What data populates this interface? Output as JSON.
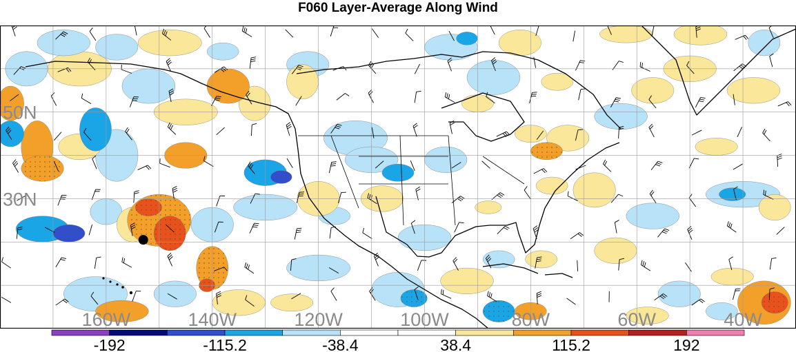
{
  "title": "F060 Layer-Average Along Wind",
  "map": {
    "projection": "cylindrical",
    "lon_range": [
      -180,
      -30
    ],
    "lat_range": [
      0,
      70
    ],
    "background": "#ffffff",
    "coast_color": "#000000",
    "grid_color": "#9a9a9a",
    "lat_labels": [
      {
        "lat": 50,
        "text": "50N"
      },
      {
        "lat": 30,
        "text": "30N"
      }
    ],
    "lon_labels": [
      {
        "lon": -160,
        "text": "160W"
      },
      {
        "lon": -140,
        "text": "140W"
      },
      {
        "lon": -120,
        "text": "120W"
      },
      {
        "lon": -100,
        "text": "100W"
      },
      {
        "lon": -80,
        "text": "80W"
      },
      {
        "lon": -60,
        "text": "60W"
      },
      {
        "lon": -40,
        "text": "40W"
      }
    ],
    "label_color": "#8a8a8a",
    "marker": {
      "lon": -153,
      "lat": 20.5,
      "color": "#000000"
    }
  },
  "colorbar": {
    "levels": [
      -192,
      -153.6,
      -115.2,
      -76.8,
      -38.4,
      0,
      38.4,
      76.8,
      115.2,
      153.6,
      192
    ],
    "colors": [
      "#8b3fc2",
      "#050a7a",
      "#2f4fd0",
      "#1aa6e6",
      "#b8e2f8",
      "#ffffff",
      "#ffffff",
      "#fbe79a",
      "#f3a02a",
      "#e8501c",
      "#b51f1f",
      "#f07fb0"
    ],
    "labels": [
      {
        "value": -192,
        "text": "-192"
      },
      {
        "value": -115.2,
        "text": "-115.2"
      },
      {
        "value": -38.4,
        "text": "-38.4"
      },
      {
        "value": 38.4,
        "text": "38.4"
      },
      {
        "value": 115.2,
        "text": "115.2"
      },
      {
        "value": 192,
        "text": "192"
      }
    ]
  },
  "blobs": [
    {
      "lon": -178,
      "lat": 52,
      "rx": 2.5,
      "ry": 4,
      "v": 85
    },
    {
      "lon": -178,
      "lat": 45,
      "rx": 2.5,
      "ry": 3,
      "v": -90
    },
    {
      "lon": -173,
      "lat": 42,
      "rx": 3,
      "ry": 6,
      "v": 80
    },
    {
      "lon": -172,
      "lat": 37,
      "rx": 4,
      "ry": 3,
      "v": 100
    },
    {
      "lon": -175,
      "lat": 60,
      "rx": 4,
      "ry": 4,
      "v": -40
    },
    {
      "lon": -168,
      "lat": 66,
      "rx": 5,
      "ry": 3,
      "v": -60
    },
    {
      "lon": -165,
      "lat": 60,
      "rx": 6,
      "ry": 4,
      "v": 50
    },
    {
      "lon": -162,
      "lat": 46,
      "rx": 3,
      "ry": 5,
      "v": -80
    },
    {
      "lon": -165,
      "lat": 42,
      "rx": 4,
      "ry": 3,
      "v": 70
    },
    {
      "lon": -158,
      "lat": 40,
      "rx": 4,
      "ry": 6,
      "v": -45
    },
    {
      "lon": -152,
      "lat": 56,
      "rx": 5,
      "ry": 4,
      "v": -50
    },
    {
      "lon": -148,
      "lat": 66,
      "rx": 6,
      "ry": 3,
      "v": 65
    },
    {
      "lon": -158,
      "lat": 65,
      "rx": 4,
      "ry": 3,
      "v": -55
    },
    {
      "lon": -145,
      "lat": 50,
      "rx": 6,
      "ry": 3,
      "v": 50
    },
    {
      "lon": -145,
      "lat": 40,
      "rx": 4,
      "ry": 3,
      "v": 80
    },
    {
      "lon": -172,
      "lat": 23,
      "rx": 5,
      "ry": 3,
      "v": -90
    },
    {
      "lon": -167,
      "lat": 22,
      "rx": 3,
      "ry": 2,
      "v": -140
    },
    {
      "lon": -160,
      "lat": 27,
      "rx": 3,
      "ry": 3,
      "v": -50
    },
    {
      "lon": -155,
      "lat": 24,
      "rx": 3,
      "ry": 4,
      "v": 70
    },
    {
      "lon": -150,
      "lat": 25,
      "rx": 6,
      "ry": 6,
      "v": 100
    },
    {
      "lon": -148,
      "lat": 22,
      "rx": 3,
      "ry": 4,
      "v": 140
    },
    {
      "lon": -152,
      "lat": 28,
      "rx": 2.5,
      "ry": 2,
      "v": 130
    },
    {
      "lon": -140,
      "lat": 14,
      "rx": 3,
      "ry": 5,
      "v": 100
    },
    {
      "lon": -141,
      "lat": 10,
      "rx": 1.5,
      "ry": 1.5,
      "v": 130
    },
    {
      "lon": -140,
      "lat": 24,
      "rx": 4,
      "ry": 4,
      "v": -45
    },
    {
      "lon": -162,
      "lat": 8,
      "rx": 6,
      "ry": 4,
      "v": -40
    },
    {
      "lon": -157,
      "lat": 4,
      "rx": 5,
      "ry": 2.5,
      "v": 80
    },
    {
      "lon": -135,
      "lat": 6,
      "rx": 5,
      "ry": 3,
      "v": 60
    },
    {
      "lon": -130,
      "lat": 36,
      "rx": 4,
      "ry": 3,
      "v": -80
    },
    {
      "lon": -127,
      "lat": 35,
      "rx": 2,
      "ry": 1.5,
      "v": -140
    },
    {
      "lon": -130,
      "lat": 28,
      "rx": 6,
      "ry": 3,
      "v": -40
    },
    {
      "lon": -137,
      "lat": 56,
      "rx": 4,
      "ry": 4,
      "v": 85
    },
    {
      "lon": -132,
      "lat": 52,
      "rx": 3,
      "ry": 4,
      "v": 70
    },
    {
      "lon": -138,
      "lat": 64,
      "rx": 3,
      "ry": 2,
      "v": -70
    },
    {
      "lon": -123,
      "lat": 57,
      "rx": 3,
      "ry": 4,
      "v": 60
    },
    {
      "lon": -122,
      "lat": 61,
      "rx": 4,
      "ry": 3,
      "v": -45
    },
    {
      "lon": -120,
      "lat": 30,
      "rx": 4,
      "ry": 4,
      "v": 55
    },
    {
      "lon": -117,
      "lat": 26,
      "rx": 3,
      "ry": 2,
      "v": -45
    },
    {
      "lon": -113,
      "lat": 44,
      "rx": 6,
      "ry": 4,
      "v": -45
    },
    {
      "lon": -110,
      "lat": 39,
      "rx": 5,
      "ry": 3,
      "v": -50
    },
    {
      "lon": -105,
      "lat": 36,
      "rx": 3,
      "ry": 2,
      "v": -90
    },
    {
      "lon": -96,
      "lat": 39,
      "rx": 4,
      "ry": 3,
      "v": -45
    },
    {
      "lon": -108,
      "lat": 30,
      "rx": 4,
      "ry": 3,
      "v": 50
    },
    {
      "lon": -100,
      "lat": 21,
      "rx": 5,
      "ry": 3,
      "v": -40
    },
    {
      "lon": -105,
      "lat": 9,
      "rx": 5,
      "ry": 4,
      "v": -60
    },
    {
      "lon": -102,
      "lat": 7,
      "rx": 2.5,
      "ry": 2,
      "v": -100
    },
    {
      "lon": -92,
      "lat": 11,
      "rx": 5,
      "ry": 3,
      "v": 55
    },
    {
      "lon": -86,
      "lat": 4,
      "rx": 3,
      "ry": 2.5,
      "v": -110
    },
    {
      "lon": -80,
      "lat": 4,
      "rx": 3,
      "ry": 2,
      "v": 80
    },
    {
      "lon": -86,
      "lat": 16,
      "rx": 3,
      "ry": 2,
      "v": -60
    },
    {
      "lon": -78,
      "lat": 16,
      "rx": 3,
      "ry": 2,
      "v": 55
    },
    {
      "lon": -88,
      "lat": 28,
      "rx": 2.5,
      "ry": 1.5,
      "v": 60
    },
    {
      "lon": -73,
      "lat": 44,
      "rx": 4,
      "ry": 3,
      "v": 60
    },
    {
      "lon": -77,
      "lat": 41,
      "rx": 3,
      "ry": 2,
      "v": 110
    },
    {
      "lon": -80,
      "lat": 45,
      "rx": 3,
      "ry": 2,
      "v": 60
    },
    {
      "lon": -76,
      "lat": 33,
      "rx": 3,
      "ry": 2,
      "v": 65
    },
    {
      "lon": -87,
      "lat": 58,
      "rx": 5,
      "ry": 4,
      "v": -50
    },
    {
      "lon": -95,
      "lat": 65,
      "rx": 5,
      "ry": 3,
      "v": -45
    },
    {
      "lon": -92,
      "lat": 67,
      "rx": 2,
      "ry": 1.5,
      "v": -90
    },
    {
      "lon": -82,
      "lat": 66,
      "rx": 4,
      "ry": 3,
      "v": 50
    },
    {
      "lon": -90,
      "lat": 52,
      "rx": 3,
      "ry": 2,
      "v": 50
    },
    {
      "lon": -75,
      "lat": 57,
      "rx": 3,
      "ry": 2,
      "v": 60
    },
    {
      "lon": -63,
      "lat": 49,
      "rx": 5,
      "ry": 3,
      "v": -45
    },
    {
      "lon": -57,
      "lat": 55,
      "rx": 4,
      "ry": 3,
      "v": 50
    },
    {
      "lon": -62,
      "lat": 68,
      "rx": 5,
      "ry": 2,
      "v": 50
    },
    {
      "lon": -48,
      "lat": 68,
      "rx": 5,
      "ry": 2.5,
      "v": 60
    },
    {
      "lon": -50,
      "lat": 60,
      "rx": 5,
      "ry": 3,
      "v": 55
    },
    {
      "lon": -38,
      "lat": 55,
      "rx": 5,
      "ry": 3,
      "v": 60
    },
    {
      "lon": -36,
      "lat": 66,
      "rx": 3,
      "ry": 3,
      "v": -40
    },
    {
      "lon": -45,
      "lat": 42,
      "rx": 4,
      "ry": 2,
      "v": 55
    },
    {
      "lon": -40,
      "lat": 31,
      "rx": 7,
      "ry": 3,
      "v": -45
    },
    {
      "lon": -42,
      "lat": 31,
      "rx": 2.5,
      "ry": 1.5,
      "v": -90
    },
    {
      "lon": -34,
      "lat": 28,
      "rx": 3,
      "ry": 3,
      "v": 55
    },
    {
      "lon": -68,
      "lat": 32,
      "rx": 4,
      "ry": 4,
      "v": 45
    },
    {
      "lon": -57,
      "lat": 26,
      "rx": 5,
      "ry": 3,
      "v": -45
    },
    {
      "lon": -64,
      "lat": 18,
      "rx": 4,
      "ry": 3,
      "v": 50
    },
    {
      "lon": -52,
      "lat": 8,
      "rx": 4,
      "ry": 3,
      "v": -50
    },
    {
      "lon": -42,
      "lat": 12,
      "rx": 4,
      "ry": 2,
      "v": 55
    },
    {
      "lon": -36,
      "lat": 6,
      "rx": 5,
      "ry": 5,
      "v": 85
    },
    {
      "lon": -34,
      "lat": 6,
      "rx": 2.5,
      "ry": 2.5,
      "v": 130
    },
    {
      "lon": -35,
      "lat": 5,
      "rx": 1.2,
      "ry": 1.2,
      "v": 20
    },
    {
      "lon": -44,
      "lat": 4,
      "rx": 3,
      "ry": 2,
      "v": -40
    },
    {
      "lon": -58,
      "lat": 3,
      "rx": 4,
      "ry": 2,
      "v": 50
    },
    {
      "lon": -120,
      "lat": 14,
      "rx": 6,
      "ry": 3,
      "v": -40
    },
    {
      "lon": -125,
      "lat": 6,
      "rx": 4,
      "ry": 2,
      "v": 50
    },
    {
      "lon": -147,
      "lat": 8,
      "rx": 4,
      "ry": 3,
      "v": -45
    }
  ]
}
